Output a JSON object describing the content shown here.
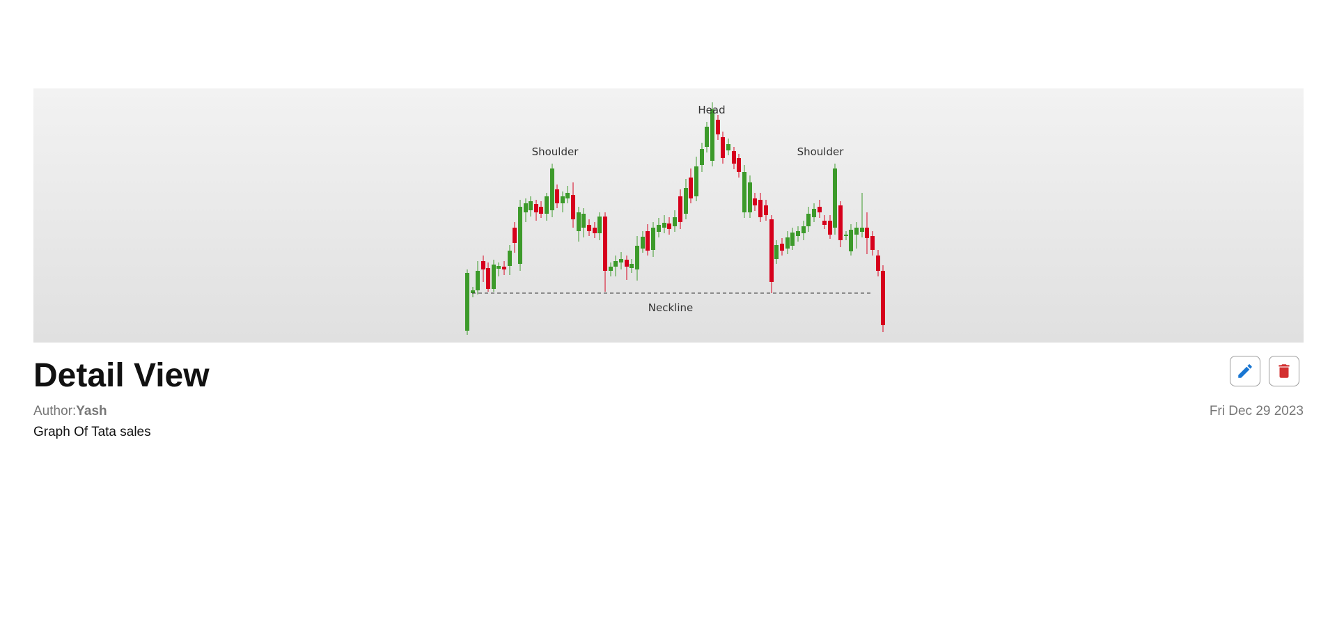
{
  "header": {
    "title": "Detail View"
  },
  "post": {
    "author_label": "Author:",
    "author_name": "Yash",
    "date": "Fri Dec 29 2023",
    "description": "Graph Of Tata sales"
  },
  "actions": {
    "edit_icon": "pencil-icon",
    "delete_icon": "trash-icon",
    "edit_color": "#1976d2",
    "delete_color": "#d32f2f"
  },
  "banner_image": {
    "labels": {
      "left": "Shoulder",
      "center": "Head",
      "right": "Shoulder",
      "neckline": "Neckline"
    },
    "up_color": "#3c9a2a",
    "down_color": "#d6001c"
  }
}
